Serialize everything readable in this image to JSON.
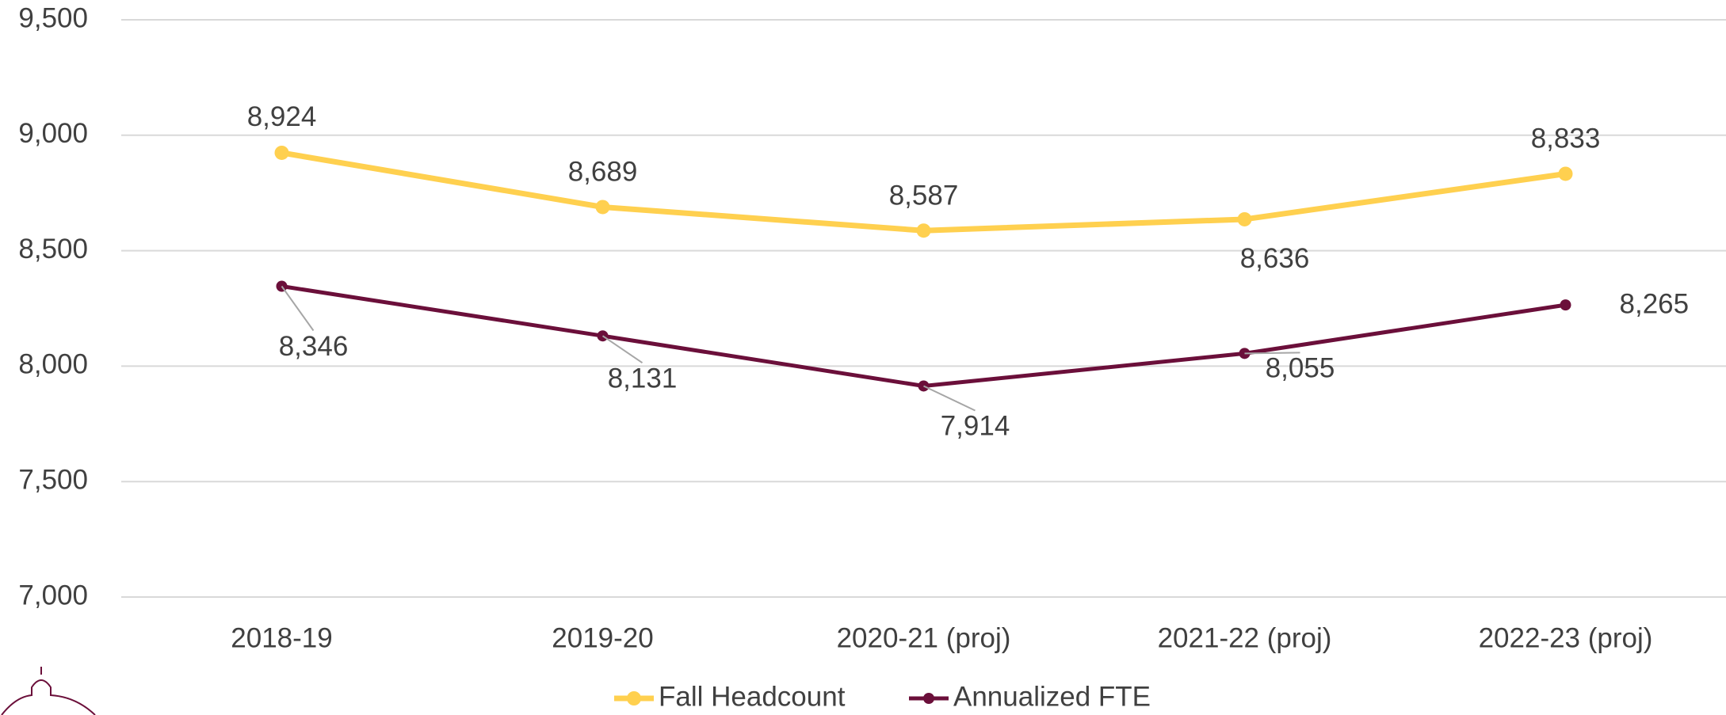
{
  "chart_data": {
    "type": "line",
    "categories": [
      "2018-19",
      "2019-20",
      "2020-21 (proj)",
      "2021-22 (proj)",
      "2022-23 (proj)"
    ],
    "series": [
      {
        "name": "Fall Headcount",
        "color": "#FFD04F",
        "values": [
          8924,
          8689,
          8587,
          8636,
          8833
        ],
        "value_labels": [
          "8,924",
          "8,689",
          "8,587",
          "8,636",
          "8,833"
        ]
      },
      {
        "name": "Annualized FTE",
        "color": "#6B0F3A",
        "values": [
          8346,
          8131,
          7914,
          8055,
          8265
        ],
        "value_labels": [
          "8,346",
          "8,131",
          "7,914",
          "8,055",
          "8,265"
        ]
      }
    ],
    "ylim": [
      7000,
      9500
    ],
    "yticks": [
      {
        "value": 7000,
        "label": "7,000"
      },
      {
        "value": 7500,
        "label": "7,500"
      },
      {
        "value": 8000,
        "label": "8,000"
      },
      {
        "value": 8500,
        "label": "8,500"
      },
      {
        "value": 9000,
        "label": "9,000"
      },
      {
        "value": 9500,
        "label": "9,500"
      }
    ],
    "grid": true,
    "legend": "bottom"
  }
}
